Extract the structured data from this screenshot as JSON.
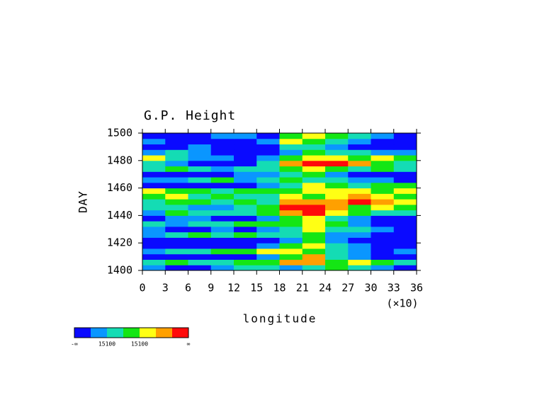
{
  "chart_data": {
    "type": "heatmap",
    "title": "G.P. Height",
    "x_label": "longitude",
    "x_scale_note": "(×10)",
    "y_label": "DAY",
    "xlim": [
      0,
      36
    ],
    "xticks": [
      0,
      3,
      6,
      9,
      12,
      15,
      18,
      21,
      24,
      27,
      30,
      33,
      36
    ],
    "ylim": [
      1400,
      1500
    ],
    "yticks": [
      1400,
      1420,
      1440,
      1460,
      1480,
      1500
    ],
    "colors": [
      "#0a0aff",
      "#0a96ff",
      "#14dcb4",
      "#14e614",
      "#ffff14",
      "#ffa000",
      "#ff0a0a"
    ],
    "colorbar_labels": [
      "-∞",
      "15100",
      "15100",
      "∞"
    ],
    "z": [
      [
        1,
        0,
        0,
        1,
        2,
        2,
        1,
        2,
        3,
        2,
        1,
        0
      ],
      [
        2,
        3,
        2,
        2,
        3,
        3,
        5,
        5,
        3,
        4,
        3,
        2
      ],
      [
        0,
        0,
        0,
        0,
        0,
        1,
        3,
        5,
        2,
        1,
        0,
        0
      ],
      [
        1,
        2,
        2,
        3,
        3,
        4,
        4,
        3,
        2,
        1,
        0,
        1
      ],
      [
        0,
        0,
        0,
        0,
        0,
        1,
        3,
        4,
        2,
        1,
        0,
        0
      ],
      [
        0,
        0,
        0,
        0,
        0,
        0,
        1,
        3,
        1,
        0,
        0,
        0
      ],
      [
        1,
        2,
        3,
        2,
        3,
        2,
        2,
        3,
        1,
        1,
        0,
        0
      ],
      [
        1,
        0,
        0,
        1,
        0,
        1,
        2,
        4,
        2,
        2,
        1,
        0
      ],
      [
        2,
        1,
        2,
        2,
        3,
        3,
        3,
        4,
        3,
        1,
        0,
        0
      ],
      [
        0,
        1,
        1,
        0,
        0,
        1,
        3,
        4,
        2,
        1,
        0,
        0
      ],
      [
        1,
        3,
        2,
        2,
        2,
        3,
        5,
        6,
        4,
        3,
        2,
        2
      ],
      [
        2,
        2,
        1,
        1,
        2,
        3,
        6,
        6,
        5,
        3,
        4,
        3
      ],
      [
        2,
        3,
        3,
        2,
        3,
        2,
        5,
        5,
        5,
        6,
        5,
        4
      ],
      [
        3,
        4,
        2,
        3,
        2,
        2,
        4,
        3,
        4,
        5,
        4,
        3
      ],
      [
        4,
        3,
        3,
        2,
        3,
        3,
        3,
        4,
        4,
        4,
        3,
        4
      ],
      [
        0,
        0,
        0,
        0,
        0,
        1,
        2,
        4,
        3,
        2,
        3,
        3
      ],
      [
        1,
        1,
        2,
        3,
        1,
        2,
        3,
        2,
        2,
        1,
        1,
        0
      ],
      [
        0,
        0,
        0,
        0,
        1,
        1,
        2,
        3,
        1,
        0,
        0,
        0
      ],
      [
        2,
        3,
        2,
        1,
        2,
        2,
        3,
        4,
        3,
        2,
        3,
        2
      ],
      [
        2,
        1,
        0,
        0,
        0,
        2,
        5,
        6,
        6,
        5,
        3,
        2
      ],
      [
        4,
        2,
        1,
        1,
        0,
        1,
        3,
        4,
        4,
        3,
        4,
        3
      ],
      [
        1,
        2,
        1,
        0,
        0,
        0,
        1,
        3,
        2,
        2,
        1,
        1
      ],
      [
        0,
        0,
        1,
        0,
        0,
        0,
        2,
        2,
        1,
        0,
        0,
        0
      ],
      [
        1,
        0,
        0,
        0,
        0,
        1,
        4,
        3,
        2,
        1,
        0,
        0
      ],
      [
        0,
        0,
        0,
        1,
        1,
        0,
        3,
        4,
        3,
        2,
        1,
        0
      ]
    ]
  }
}
